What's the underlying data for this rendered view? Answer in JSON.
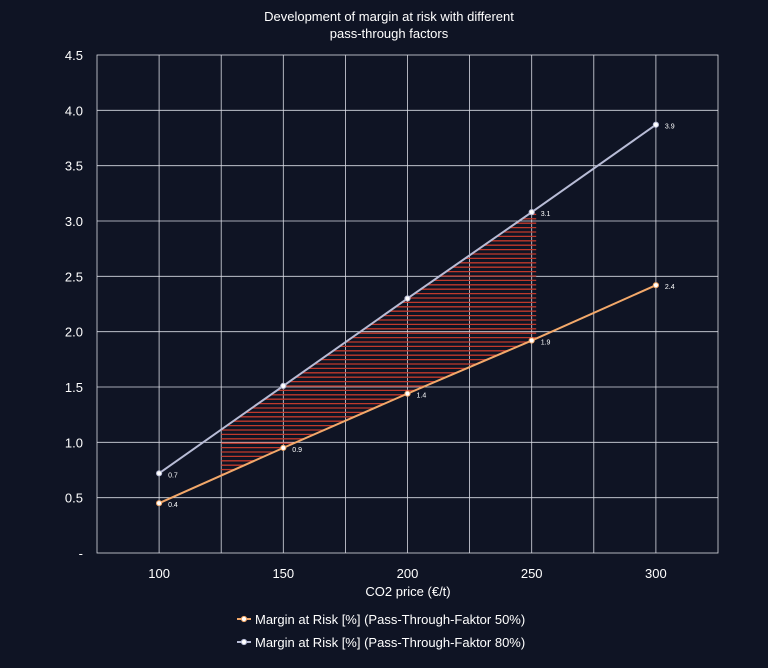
{
  "chart_data": {
    "type": "line",
    "title": [
      "Development of margin at risk with different",
      "pass-through factors"
    ],
    "xlabel": "CO2 price (€/t)",
    "ylabel": "",
    "x": [
      100,
      150,
      200,
      250,
      300
    ],
    "xticks": [
      100,
      150,
      200,
      250,
      300
    ],
    "xlim": [
      75,
      325
    ],
    "yticks": [
      0,
      0.5,
      1.0,
      1.5,
      2.0,
      2.5,
      3.0,
      3.5,
      4.0,
      4.5
    ],
    "ytick_labels": [
      "-",
      "0.5",
      "1.0",
      "1.5",
      "2.0",
      "2.5",
      "3.0",
      "3.5",
      "4.0",
      "4.5"
    ],
    "ylim": [
      0,
      4.5
    ],
    "grid": true,
    "legend_position": "bottom",
    "series": [
      {
        "name": "Margin at Risk [%] (Pass-Through-Faktor 50%)",
        "color": "#f2a86a",
        "values": [
          0.45,
          0.95,
          1.44,
          1.92,
          2.42
        ],
        "data_labels": [
          "0.4",
          "0.9",
          "1.4",
          "1.9",
          "2.4"
        ]
      },
      {
        "name": "Margin at Risk [%] (Pass-Through-Faktor 80%)",
        "color": "#b8bcd6",
        "values": [
          0.72,
          1.51,
          2.3,
          3.08,
          3.87
        ],
        "data_labels": [
          "0.7",
          "",
          "",
          "3.1",
          "3.9"
        ]
      }
    ],
    "shaded_band": {
      "x_range": [
        125,
        252
      ],
      "between_series": [
        0,
        1
      ],
      "color": "#c0392b",
      "style": "horizontal-hatch"
    }
  }
}
